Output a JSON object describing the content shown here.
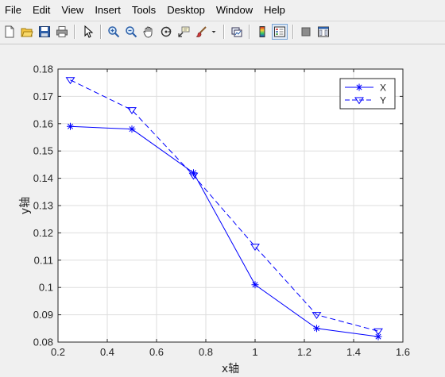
{
  "menu": [
    "File",
    "Edit",
    "View",
    "Insert",
    "Tools",
    "Desktop",
    "Window",
    "Help"
  ],
  "toolbar": [
    "new-figure",
    "open-file",
    "save",
    "print",
    "edit-plot",
    "zoom-in",
    "zoom-out",
    "pan",
    "rotate-3d",
    "data-cursor",
    "brush",
    "link-plot",
    "colorbar",
    "legend",
    "hide-plot-tools",
    "show-plot-tools"
  ],
  "chart_data": {
    "type": "line",
    "xlabel": "x轴",
    "ylabel": "y轴",
    "xlim": [
      0.2,
      1.6
    ],
    "ylim": [
      0.08,
      0.18
    ],
    "xticks": [
      "0.2",
      "0.4",
      "0.6",
      "0.8",
      "1",
      "1.2",
      "1.4",
      "1.6"
    ],
    "yticks": [
      "0.08",
      "0.09",
      "0.1",
      "0.11",
      "0.12",
      "0.13",
      "0.14",
      "0.15",
      "0.16",
      "0.17",
      "0.18"
    ],
    "grid": true,
    "legend_position": "top-right",
    "x": [
      0.25,
      0.5,
      0.75,
      1.0,
      1.25,
      1.5
    ],
    "series": [
      {
        "name": "X",
        "values": [
          0.159,
          0.158,
          0.142,
          0.101,
          0.085,
          0.082
        ],
        "marker": "asterisk",
        "line": "solid",
        "color": "#0000ff"
      },
      {
        "name": "Y",
        "values": [
          0.176,
          0.165,
          0.141,
          0.115,
          0.09,
          0.084
        ],
        "marker": "triangle-down",
        "line": "dashed",
        "color": "#0000ff"
      }
    ]
  }
}
